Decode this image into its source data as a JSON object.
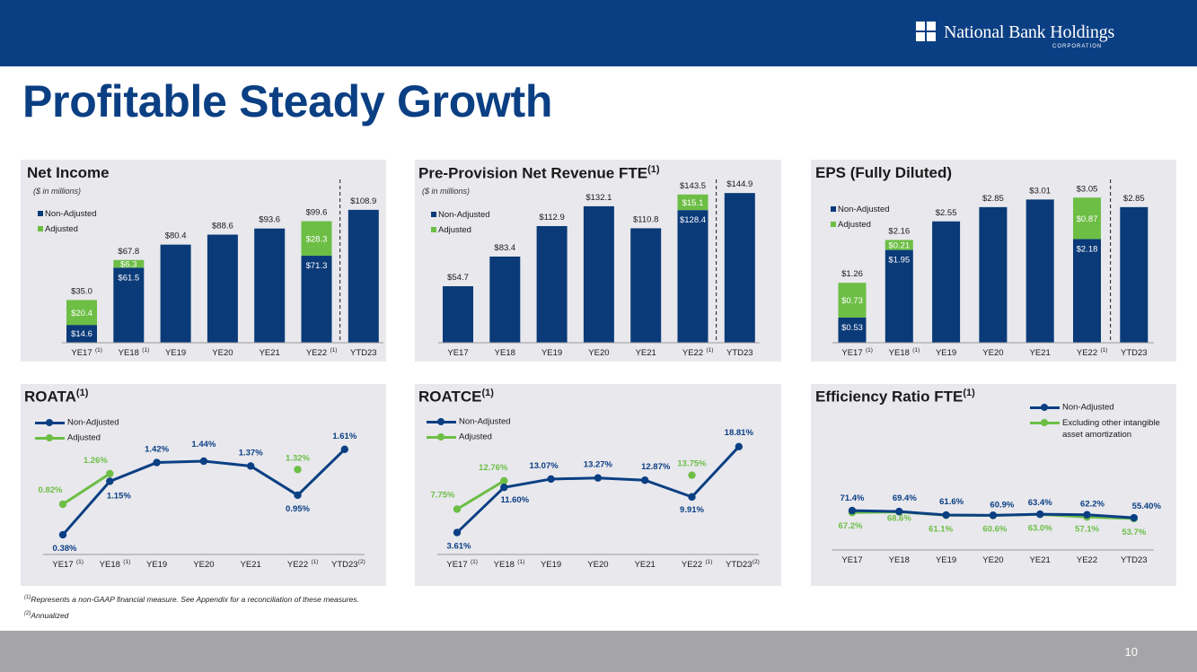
{
  "header": {
    "logo_name": "National Bank Holdings",
    "logo_sub": "CORPORATION"
  },
  "page_title": "Profitable Steady Growth",
  "colors": {
    "navy": "#0b3f83",
    "green": "#6dbe45",
    "panel_bg": "#e8e8ed",
    "bar_navy": "#0a3a78"
  },
  "footnotes": {
    "note1_marker": "(1)",
    "note1": "Represents a non-GAAP financial measure.  See Appendix for a reconciliation of these measures.",
    "note2_marker": "(2)",
    "note2": "Annualized"
  },
  "page_number": "10",
  "charts": {
    "net_income": {
      "title": "Net Income",
      "subtitle": "($ in millions)",
      "legend": [
        "Non-Adjusted",
        "Adjusted"
      ],
      "chart_data": {
        "type": "bar",
        "stacked": true,
        "categories": [
          "YE17",
          "YE18",
          "YE19",
          "YE20",
          "YE21",
          "YE22",
          "YTD23"
        ],
        "category_markers": [
          "(1)",
          "(1)",
          "",
          "",
          "",
          "(1)",
          ""
        ],
        "series": [
          {
            "name": "Non-Adjusted",
            "values": [
              14.6,
              61.5,
              80.4,
              88.6,
              93.6,
              71.3,
              108.9
            ]
          },
          {
            "name": "Adjusted",
            "values": [
              20.4,
              6.3,
              null,
              null,
              null,
              28.3,
              null
            ]
          }
        ],
        "segment_labels": {
          "Non-Adjusted": [
            "$14.6",
            "$61.5",
            "",
            "",
            "",
            "$71.3",
            ""
          ],
          "Adjusted": [
            "$20.4",
            "$6.3",
            "",
            "",
            "",
            "$28.3",
            ""
          ]
        },
        "total_labels": [
          "$35.0",
          "$67.8",
          "$80.4",
          "$88.6",
          "$93.6",
          "$99.6",
          "$108.9"
        ],
        "ylim": [
          0,
          125
        ]
      }
    },
    "pprn": {
      "title": "Pre-Provision Net Revenue FTE",
      "title_marker": "(1)",
      "subtitle": "($ in millions)",
      "legend": [
        "Non-Adjusted",
        "Adjusted"
      ],
      "chart_data": {
        "type": "bar",
        "stacked": true,
        "categories": [
          "YE17",
          "YE18",
          "YE19",
          "YE20",
          "YE21",
          "YE22",
          "YTD23"
        ],
        "category_markers": [
          "",
          "",
          "",
          "",
          "",
          "(1)",
          ""
        ],
        "series": [
          {
            "name": "Non-Adjusted",
            "values": [
              54.7,
              83.4,
              112.9,
              132.1,
              110.8,
              128.4,
              144.9
            ]
          },
          {
            "name": "Adjusted",
            "values": [
              null,
              null,
              null,
              null,
              null,
              15.1,
              null
            ]
          }
        ],
        "segment_labels": {
          "Non-Adjusted": [
            "",
            "",
            "",
            "",
            "",
            "$128.4",
            ""
          ],
          "Adjusted": [
            "",
            "",
            "",
            "",
            "",
            "$15.1",
            ""
          ]
        },
        "total_labels": [
          "$54.7",
          "$83.4",
          "$112.9",
          "$132.1",
          "$110.8",
          "$143.5",
          "$144.9"
        ],
        "ylim": [
          0,
          152
        ]
      }
    },
    "eps": {
      "title": "EPS (Fully Diluted)",
      "legend": [
        "Non-Adjusted",
        "Adjusted"
      ],
      "chart_data": {
        "type": "bar",
        "stacked": true,
        "categories": [
          "YE17",
          "YE18",
          "YE19",
          "YE20",
          "YE21",
          "YE22",
          "YTD23"
        ],
        "category_markers": [
          "(1)",
          "(1)",
          "",
          "",
          "",
          "(1)",
          ""
        ],
        "series": [
          {
            "name": "Non-Adjusted",
            "values": [
              0.53,
              1.95,
              2.55,
              2.85,
              3.01,
              2.18,
              2.85
            ]
          },
          {
            "name": "Adjusted",
            "values": [
              0.73,
              0.21,
              null,
              null,
              null,
              0.87,
              null
            ]
          }
        ],
        "segment_labels": {
          "Non-Adjusted": [
            "$0.53",
            "$1.95",
            "",
            "",
            "",
            "$2.18",
            ""
          ],
          "Adjusted": [
            "$0.73",
            "$0.21",
            "",
            "",
            "",
            "$0.87",
            ""
          ]
        },
        "total_labels": [
          "$1.26",
          "$2.16",
          "$2.55",
          "$2.85",
          "$3.01",
          "$3.05",
          "$2.85"
        ],
        "ylim": [
          0,
          3.3
        ]
      }
    },
    "roata": {
      "title": "ROATA",
      "title_marker": "(1)",
      "legend": [
        "Non-Adjusted",
        "Adjusted"
      ],
      "chart_data": {
        "type": "line",
        "categories": [
          "YE17",
          "YE18",
          "YE19",
          "YE20",
          "YE21",
          "YE22",
          "YTD23"
        ],
        "category_markers": [
          "(1)",
          "(1)",
          "",
          "",
          "",
          "(1)",
          "(2)"
        ],
        "series": [
          {
            "name": "Non-Adjusted",
            "values": [
              0.38,
              1.15,
              1.42,
              1.44,
              1.37,
              0.95,
              1.61
            ],
            "labels": [
              "0.38%",
              "1.15%",
              "1.42%",
              "1.44%",
              "1.37%",
              "0.95%",
              "1.61%"
            ]
          },
          {
            "name": "Adjusted",
            "values": [
              0.82,
              1.26,
              null,
              null,
              null,
              1.32,
              null
            ],
            "labels": [
              "0.82%",
              "1.26%",
              "",
              "",
              "",
              "1.32%",
              ""
            ]
          }
        ],
        "ylim": [
          0.2,
          1.75
        ]
      }
    },
    "roatce": {
      "title": "ROATCE",
      "title_marker": "(1)",
      "legend": [
        "Non-Adjusted",
        "Adjusted"
      ],
      "chart_data": {
        "type": "line",
        "categories": [
          "YE17",
          "YE18",
          "YE19",
          "YE20",
          "YE21",
          "YE22",
          "YTD23"
        ],
        "category_markers": [
          "(1)",
          "(1)",
          "",
          "",
          "",
          "(1)",
          "(2)"
        ],
        "series": [
          {
            "name": "Non-Adjusted",
            "values": [
              3.61,
              11.6,
              13.07,
              13.27,
              12.87,
              9.91,
              18.81
            ],
            "labels": [
              "3.61%",
              "11.60%",
              "13.07%",
              "13.27%",
              "12.87%",
              "9.91%",
              "18.81%"
            ]
          },
          {
            "name": "Adjusted",
            "values": [
              7.75,
              12.76,
              null,
              null,
              null,
              13.75,
              null
            ],
            "labels": [
              "7.75%",
              "12.76%",
              "",
              "",
              "",
              "13.75%",
              ""
            ]
          }
        ],
        "ylim": [
          1.0,
          21.0
        ]
      }
    },
    "efficiency": {
      "title": "Efficiency Ratio FTE",
      "title_marker": "(1)",
      "legend": [
        "Non-Adjusted",
        "Excluding other intangible asset amortization"
      ],
      "chart_data": {
        "type": "line",
        "categories": [
          "YE17",
          "YE18",
          "YE19",
          "YE20",
          "YE21",
          "YE22",
          "YTD23"
        ],
        "category_markers": [
          "",
          "",
          "",
          "",
          "",
          "",
          ""
        ],
        "series": [
          {
            "name": "Non-Adjusted",
            "values": [
              71.4,
              69.4,
              61.6,
              60.9,
              63.4,
              62.2,
              55.4
            ],
            "labels": [
              "71.4%",
              "69.4%",
              "61.6%",
              "60.9%",
              "63.4%",
              "62.2%",
              "55.40%"
            ]
          },
          {
            "name": "Excluding other intangible asset amortization",
            "values": [
              67.2,
              68.6,
              61.1,
              60.6,
              63.0,
              57.1,
              53.7
            ],
            "labels": [
              "67.2%",
              "68.6%",
              "61.1%",
              "60.6%",
              "63.0%",
              "57.1%",
              "53.7%"
            ]
          }
        ],
        "ylim": [
          0,
          175
        ]
      }
    }
  }
}
